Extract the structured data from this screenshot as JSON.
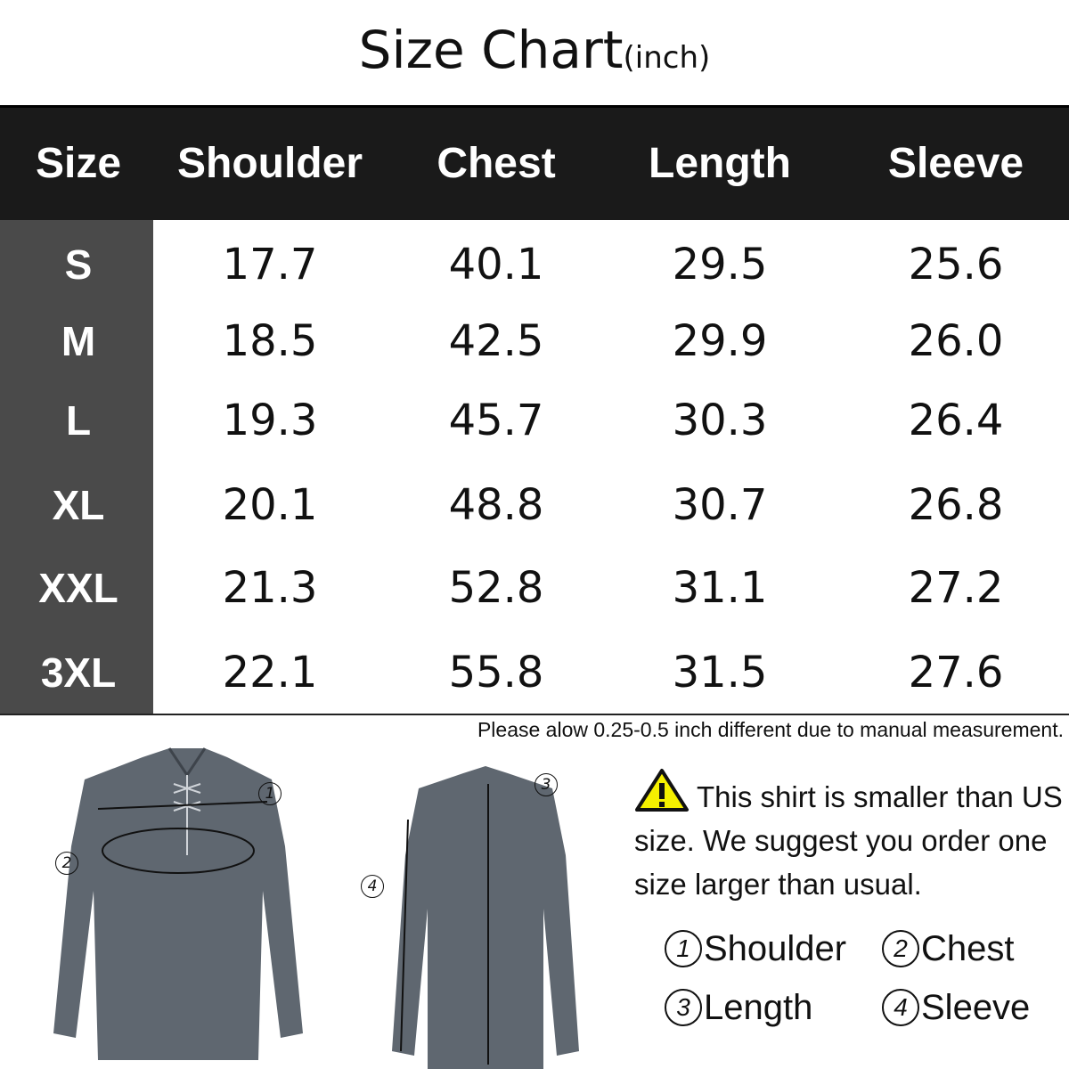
{
  "title": {
    "main": "Size Chart",
    "unit": "(inch)"
  },
  "table": {
    "headers": [
      "Size",
      "Shoulder",
      "Chest",
      "Length",
      "Sleeve"
    ],
    "rows": [
      {
        "size": "S",
        "shoulder": "17.7",
        "chest": "40.1",
        "length": "29.5",
        "sleeve": "25.6"
      },
      {
        "size": "M",
        "shoulder": "18.5",
        "chest": "42.5",
        "length": "29.9",
        "sleeve": "26.0"
      },
      {
        "size": "L",
        "shoulder": "19.3",
        "chest": "45.7",
        "length": "30.3",
        "sleeve": "26.4"
      },
      {
        "size": "XL",
        "shoulder": "20.1",
        "chest": "48.8",
        "length": "30.7",
        "sleeve": "26.8"
      },
      {
        "size": "XXL",
        "shoulder": "21.3",
        "chest": "52.8",
        "length": "31.1",
        "sleeve": "27.2"
      },
      {
        "size": "3XL",
        "shoulder": "22.1",
        "chest": "55.8",
        "length": "31.5",
        "sleeve": "27.6"
      }
    ]
  },
  "note": "Please alow 0.25-0.5 inch different due to manual measurement.",
  "warning": {
    "icon": "warning-triangle-icon",
    "text": "This shirt is smaller than US size. We suggest you order one size larger than usual."
  },
  "legend": [
    {
      "num": "1",
      "label": "Shoulder"
    },
    {
      "num": "2",
      "label": "Chest"
    },
    {
      "num": "3",
      "label": "Length"
    },
    {
      "num": "4",
      "label": "Sleeve"
    }
  ],
  "colors": {
    "header_bg": "#1a1a1a",
    "size_col_bg": "#4a4a4a",
    "shirt": "#5f6770",
    "warning": "#f5f000"
  }
}
